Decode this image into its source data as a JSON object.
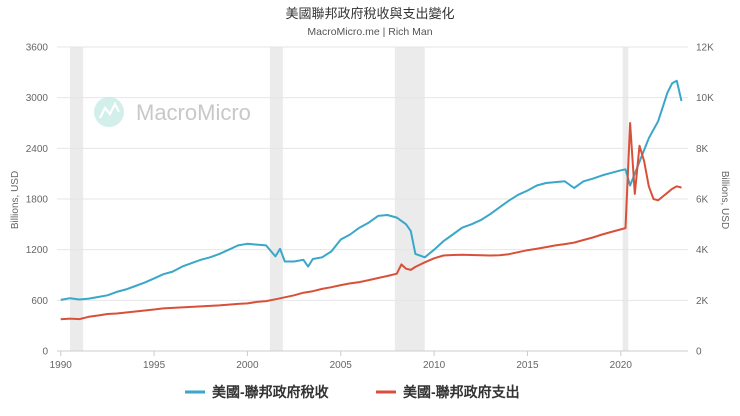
{
  "chart_data": {
    "type": "line",
    "title": "美國聯邦政府稅收與支出變化",
    "subtitle": "MacroMicro.me | Rich Man",
    "watermark": "MacroMicro",
    "y_left": {
      "label": "Billions, USD",
      "ylim": [
        0,
        3600
      ],
      "ticks": [
        "0",
        "600",
        "1200",
        "1800",
        "2400",
        "3000",
        "3600"
      ]
    },
    "y_right": {
      "label": "Billions, USD",
      "ylim": [
        0,
        12000
      ],
      "ticks": [
        "0",
        "2K",
        "4K",
        "6K",
        "8K",
        "10K",
        "12K"
      ]
    },
    "x_axis": {
      "range": [
        1989.8,
        2023.6
      ],
      "ticks": [
        "1990",
        "1995",
        "2000",
        "2005",
        "2010",
        "2015",
        "2020"
      ]
    },
    "grid": "horizontal",
    "recession_bands": [
      [
        1990.5,
        1991.2
      ],
      [
        2001.2,
        2001.9
      ],
      [
        2007.9,
        2009.5
      ],
      [
        2020.1,
        2020.4
      ]
    ],
    "series": [
      {
        "name": "美國-聯邦政府稅收",
        "axis": "left",
        "color": "#3aa7c9",
        "x": [
          1990,
          1990.5,
          1991,
          1991.5,
          1992,
          1992.5,
          1993,
          1993.5,
          1994,
          1994.5,
          1995,
          1995.5,
          1996,
          1996.5,
          1997,
          1997.5,
          1998,
          1998.5,
          1999,
          1999.5,
          2000,
          2000.5,
          2001,
          2001.5,
          2001.75,
          2002,
          2002.5,
          2003,
          2003.25,
          2003.5,
          2004,
          2004.5,
          2005,
          2005.5,
          2006,
          2006.5,
          2007,
          2007.5,
          2008,
          2008.5,
          2008.75,
          2009,
          2009.5,
          2010,
          2010.5,
          2011,
          2011.5,
          2012,
          2012.5,
          2013,
          2013.5,
          2014,
          2014.5,
          2015,
          2015.5,
          2016,
          2016.5,
          2017,
          2017.5,
          2018,
          2018.5,
          2019,
          2019.5,
          2020,
          2020.25,
          2020.5,
          2021,
          2021.5,
          2022,
          2022.5,
          2022.75,
          2023,
          2023.25
        ],
        "values": [
          605,
          625,
          610,
          620,
          640,
          660,
          700,
          730,
          770,
          810,
          860,
          910,
          940,
          1000,
          1040,
          1080,
          1110,
          1150,
          1200,
          1250,
          1270,
          1260,
          1250,
          1120,
          1210,
          1060,
          1060,
          1080,
          1000,
          1090,
          1110,
          1180,
          1320,
          1380,
          1460,
          1520,
          1600,
          1610,
          1580,
          1500,
          1420,
          1150,
          1110,
          1200,
          1300,
          1380,
          1460,
          1500,
          1550,
          1620,
          1700,
          1780,
          1850,
          1900,
          1960,
          1990,
          2000,
          2010,
          1930,
          2010,
          2040,
          2080,
          2110,
          2140,
          2150,
          1960,
          2240,
          2520,
          2720,
          3060,
          3170,
          3200,
          2960
        ]
      },
      {
        "name": "美國-聯邦政府支出",
        "axis": "right",
        "color": "#d9503a",
        "x": [
          1990,
          1990.5,
          1991,
          1991.5,
          1992,
          1992.5,
          1993,
          1993.5,
          1994,
          1994.5,
          1995,
          1995.5,
          1996,
          1996.5,
          1997,
          1997.5,
          1998,
          1998.5,
          1999,
          1999.5,
          2000,
          2000.5,
          2001,
          2001.5,
          2002,
          2002.5,
          2003,
          2003.5,
          2004,
          2004.5,
          2005,
          2005.5,
          2006,
          2006.5,
          2007,
          2007.5,
          2008,
          2008.25,
          2008.5,
          2008.75,
          2009,
          2009.5,
          2010,
          2010.5,
          2011,
          2011.5,
          2012,
          2012.5,
          2013,
          2013.5,
          2014,
          2014.5,
          2015,
          2015.5,
          2016,
          2016.5,
          2017,
          2017.5,
          2018,
          2018.5,
          2019,
          2019.5,
          2020,
          2020.25,
          2020.5,
          2020.75,
          2021,
          2021.25,
          2021.5,
          2021.75,
          2022,
          2022.25,
          2022.5,
          2022.75,
          2023,
          2023.25
        ],
        "values": [
          1250,
          1280,
          1260,
          1350,
          1400,
          1460,
          1480,
          1520,
          1560,
          1600,
          1640,
          1680,
          1700,
          1720,
          1740,
          1760,
          1780,
          1800,
          1830,
          1860,
          1880,
          1940,
          1970,
          2040,
          2120,
          2200,
          2300,
          2360,
          2450,
          2520,
          2600,
          2670,
          2720,
          2800,
          2880,
          2960,
          3050,
          3420,
          3250,
          3200,
          3320,
          3500,
          3660,
          3770,
          3790,
          3800,
          3790,
          3780,
          3770,
          3780,
          3820,
          3900,
          3980,
          4040,
          4100,
          4170,
          4220,
          4280,
          4380,
          4480,
          4600,
          4700,
          4800,
          4850,
          9000,
          6200,
          8100,
          7500,
          6500,
          6000,
          5950,
          6100,
          6250,
          6400,
          6500,
          6450
        ]
      }
    ]
  },
  "legend": [
    {
      "label": "美國-聯邦政府稅收",
      "color": "#3aa7c9"
    },
    {
      "label": "美國-聯邦政府支出",
      "color": "#d9503a"
    }
  ]
}
